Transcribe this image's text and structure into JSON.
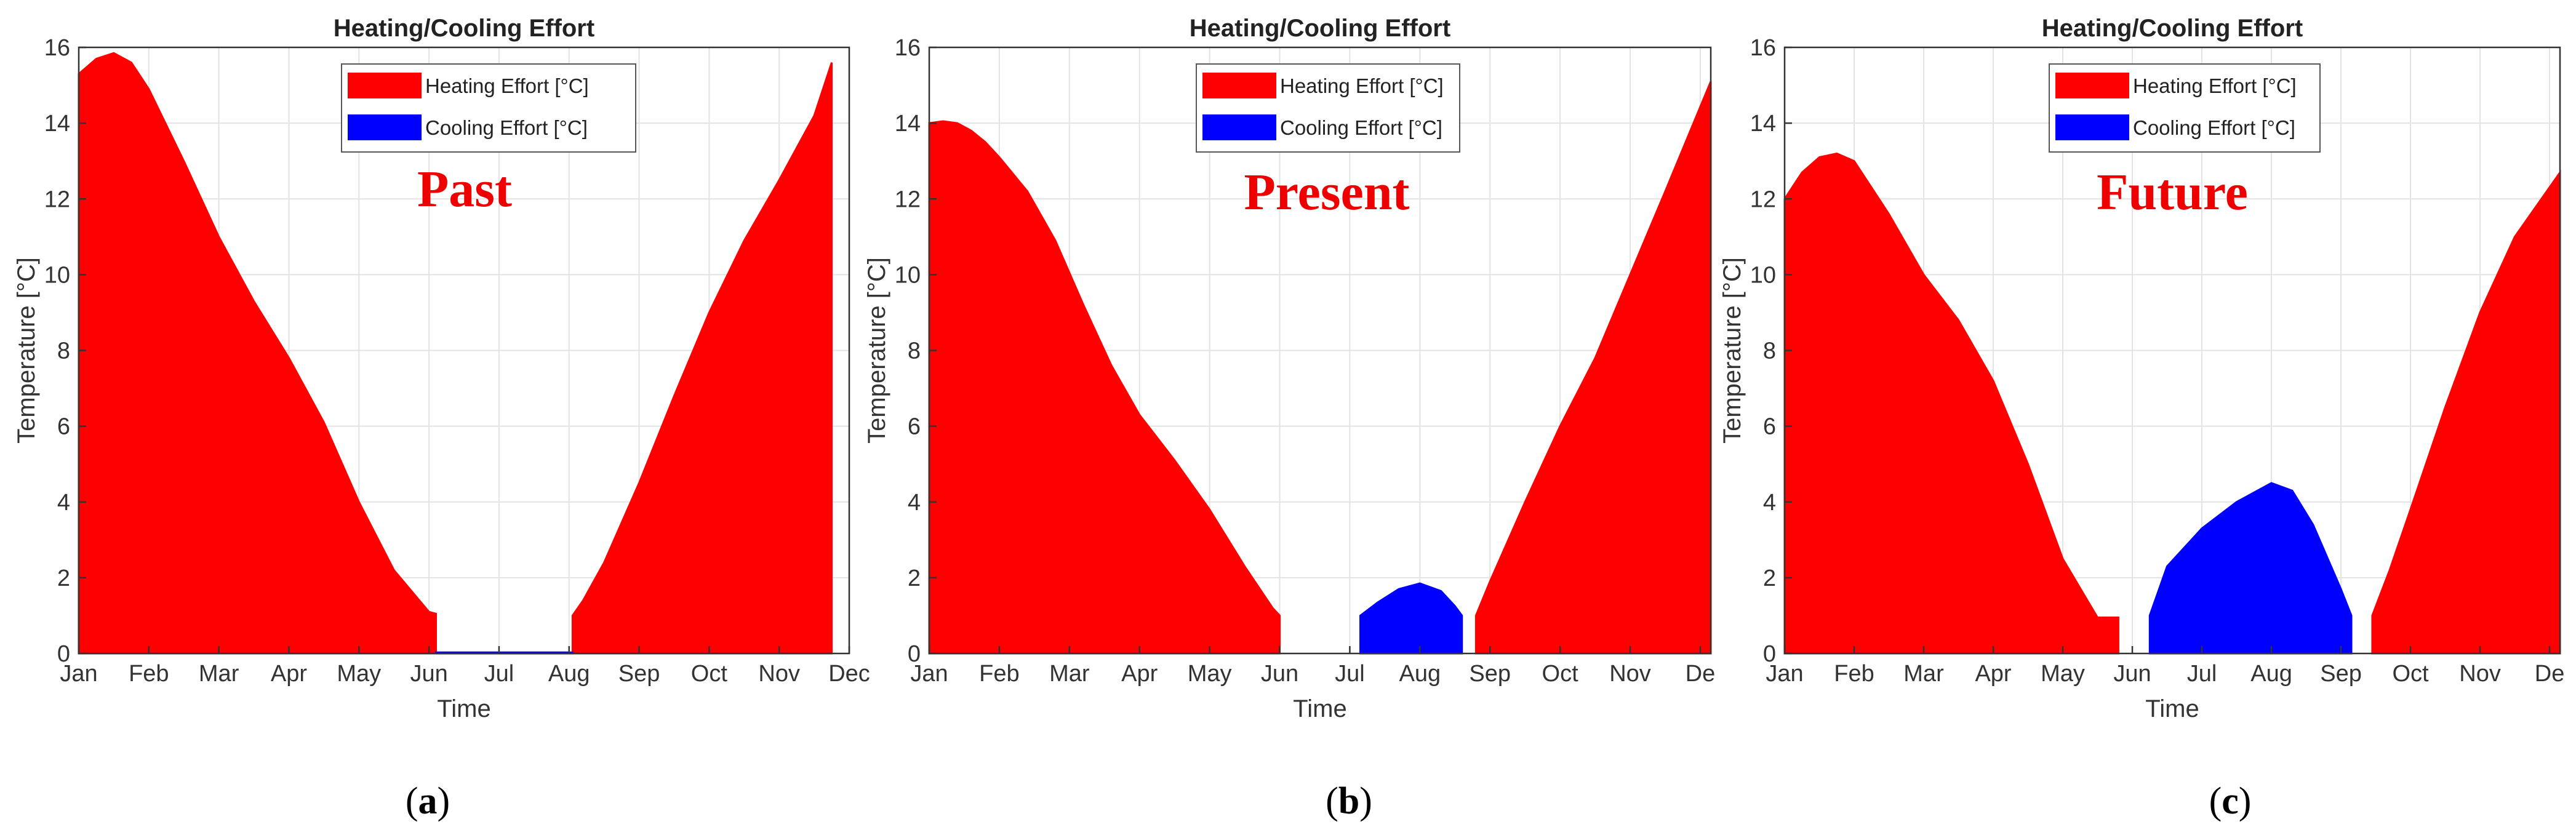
{
  "chart_data": [
    {
      "type": "area",
      "title": "Heating/Cooling Effort",
      "xlabel": "Time",
      "ylabel": "Temperature [°C]",
      "ylim": [
        0,
        16
      ],
      "yticks": [
        0,
        2,
        4,
        6,
        8,
        10,
        12,
        14,
        16
      ],
      "xlim": [
        0,
        11
      ],
      "categories": [
        "Jan",
        "Feb",
        "Mar",
        "Apr",
        "May",
        "Jun",
        "Jul",
        "Aug",
        "Sep",
        "Oct",
        "Nov",
        "Dec"
      ],
      "grid": true,
      "legend_position": "top-center",
      "annotation": "Past",
      "subcaption": "a",
      "series": [
        {
          "name": "Heating Effort [°C]",
          "color": "#ff0000",
          "segments": [
            {
              "x": [
                0,
                0.25,
                0.5,
                0.75,
                1,
                1.5,
                2,
                2.5,
                3,
                3.5,
                4,
                4.5,
                5,
                5.1
              ],
              "y": [
                15.3,
                15.7,
                15.85,
                15.6,
                14.9,
                13.0,
                11.0,
                9.3,
                7.8,
                6.1,
                4.0,
                2.2,
                1.1,
                1.05
              ]
            },
            {
              "x": [
                7.05,
                7.2,
                7.5,
                8,
                8.5,
                9,
                9.5,
                10,
                10.5,
                10.75
              ],
              "y": [
                1.0,
                1.4,
                2.4,
                4.5,
                6.8,
                9.0,
                10.9,
                12.5,
                14.2,
                15.6
              ]
            }
          ]
        },
        {
          "name": "Cooling Effort [°C]",
          "color": "#0000ff",
          "segments": [
            {
              "x": [
                5.1,
                7.05
              ],
              "y": [
                0.03,
                0.03
              ]
            }
          ]
        }
      ]
    },
    {
      "type": "area",
      "title": "Heating/Cooling Effort",
      "xlabel": "Time",
      "ylabel": "Temperature [°C]",
      "ylim": [
        0,
        16
      ],
      "yticks": [
        0,
        2,
        4,
        6,
        8,
        10,
        12,
        14,
        16
      ],
      "xlim": [
        0,
        11.15
      ],
      "categories": [
        "Jan",
        "Feb",
        "Mar",
        "Apr",
        "May",
        "Jun",
        "Jul",
        "Aug",
        "Sep",
        "Oct",
        "Nov",
        "De"
      ],
      "grid": true,
      "legend_position": "top-center",
      "annotation": "Present",
      "subcaption": "b",
      "series": [
        {
          "name": "Heating Effort [°C]",
          "color": "#ff0000",
          "segments": [
            {
              "x": [
                0,
                0.2,
                0.4,
                0.6,
                0.8,
                1,
                1.4,
                1.8,
                2.2,
                2.6,
                3,
                3.5,
                4,
                4.5,
                4.9,
                5.0
              ],
              "y": [
                14.0,
                14.05,
                14.0,
                13.8,
                13.5,
                13.1,
                12.2,
                10.9,
                9.2,
                7.6,
                6.3,
                5.1,
                3.8,
                2.3,
                1.2,
                1.0
              ]
            },
            {
              "x": [
                7.8,
                8.0,
                8.5,
                9,
                9.5,
                10,
                10.5,
                11.15
              ],
              "y": [
                1.0,
                1.9,
                4.0,
                6.0,
                7.8,
                10.0,
                12.2,
                15.1
              ]
            }
          ]
        },
        {
          "name": "Cooling Effort [°C]",
          "color": "#0000ff",
          "segments": [
            {
              "x": [
                6.15,
                6.4,
                6.7,
                7.0,
                7.3,
                7.5,
                7.6
              ],
              "y": [
                1.0,
                1.35,
                1.7,
                1.85,
                1.65,
                1.25,
                1.0
              ]
            }
          ]
        }
      ]
    },
    {
      "type": "area",
      "title": "Heating/Cooling Effort",
      "xlabel": "Time",
      "ylabel": "Temperature [°C]",
      "ylim": [
        0,
        16
      ],
      "yticks": [
        0,
        2,
        4,
        6,
        8,
        10,
        12,
        14,
        16
      ],
      "xlim": [
        0,
        11.15
      ],
      "categories": [
        "Jan",
        "Feb",
        "Mar",
        "Apr",
        "May",
        "Jun",
        "Jul",
        "Aug",
        "Sep",
        "Oct",
        "Nov",
        "De"
      ],
      "grid": true,
      "legend_position": "top-center",
      "annotation": "Future",
      "subcaption": "c",
      "series": [
        {
          "name": "Heating Effort [°C]",
          "color": "#ff0000",
          "segments": [
            {
              "x": [
                0,
                0.25,
                0.5,
                0.75,
                1,
                1.5,
                2,
                2.5,
                3,
                3.5,
                4,
                4.5,
                4.75,
                4.8
              ],
              "y": [
                12.0,
                12.7,
                13.1,
                13.2,
                13.0,
                11.6,
                10.0,
                8.8,
                7.2,
                5.0,
                2.5,
                0.95,
                0.95,
                0.95
              ]
            },
            {
              "x": [
                8.45,
                8.7,
                9,
                9.5,
                10,
                10.5,
                11.15
              ],
              "y": [
                1.0,
                2.2,
                3.8,
                6.5,
                9.0,
                11.0,
                12.7
              ]
            }
          ]
        },
        {
          "name": "Cooling Effort [°C]",
          "color": "#0000ff",
          "segments": [
            {
              "x": [
                5.25,
                5.5,
                6,
                6.5,
                7,
                7.3,
                7.6,
                8.0,
                8.15
              ],
              "y": [
                1.0,
                2.3,
                3.3,
                4.0,
                4.5,
                4.3,
                3.4,
                1.7,
                1.0
              ]
            }
          ]
        }
      ]
    }
  ]
}
